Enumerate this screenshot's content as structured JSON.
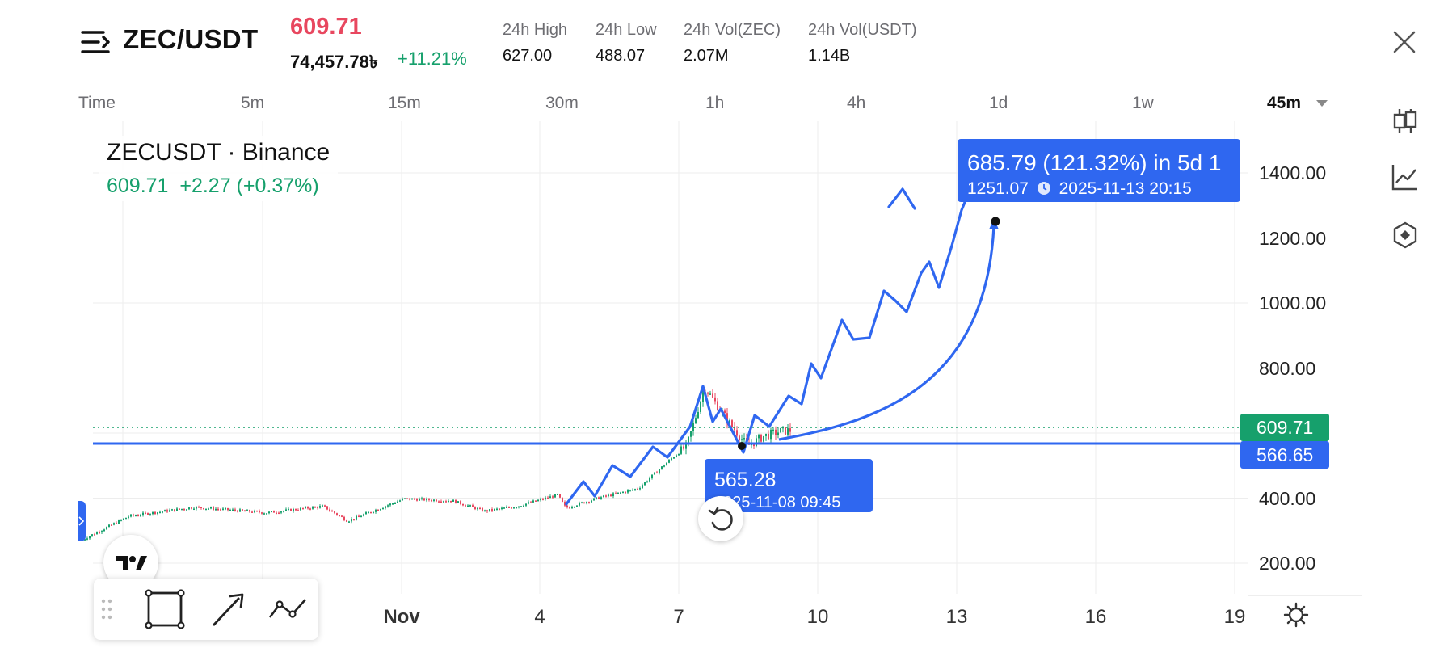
{
  "header": {
    "pair": "ZEC/USDT",
    "last_price": "609.71",
    "fiat_price": "74,457.78৳",
    "change_pct": "+11.21%",
    "stats": [
      {
        "label": "24h High",
        "value": "627.00"
      },
      {
        "label": "24h Low",
        "value": "488.07"
      },
      {
        "label": "24h Vol(ZEC)",
        "value": "2.07M"
      },
      {
        "label": "24h Vol(USDT)",
        "value": "1.14B"
      }
    ]
  },
  "timeframes": {
    "items": [
      "Time",
      "5m",
      "15m",
      "30m",
      "1h",
      "4h",
      "1d",
      "1w"
    ],
    "selected": "45m"
  },
  "legend": {
    "symbol": "ZECUSDT · Binance",
    "values": "609.71  +2.27 (+0.37%)"
  },
  "badges": {
    "last": "609.71",
    "line": "566.65"
  },
  "tooltips": {
    "top_main": "685.79 (121.32%) in 5d 1",
    "top_sub_price": "1251.07",
    "top_sub_time": "2025-11-13  20:15",
    "low_main": "565.28",
    "low_sub": "2025-11-08 09:45"
  },
  "axes": {
    "y_labels": [
      "1400.00",
      "1200.00",
      "1000.00",
      "800.00",
      "400.00",
      "200.00"
    ],
    "x_labels": [
      "Nov",
      "4",
      "7",
      "10",
      "13",
      "16",
      "19"
    ]
  },
  "colors": {
    "up": "#16a06c",
    "down": "#e8475f",
    "accent": "#2f67f0"
  },
  "icons": [
    "menu-icon",
    "close-icon",
    "caret-down-icon",
    "candlestick-icon",
    "line-chart-icon",
    "hexagon-icon",
    "gear-icon",
    "replay-icon",
    "tradingview-logo",
    "drag-handle-icon",
    "rectangle-tool-icon",
    "arrow-tool-icon",
    "path-tool-icon"
  ]
}
